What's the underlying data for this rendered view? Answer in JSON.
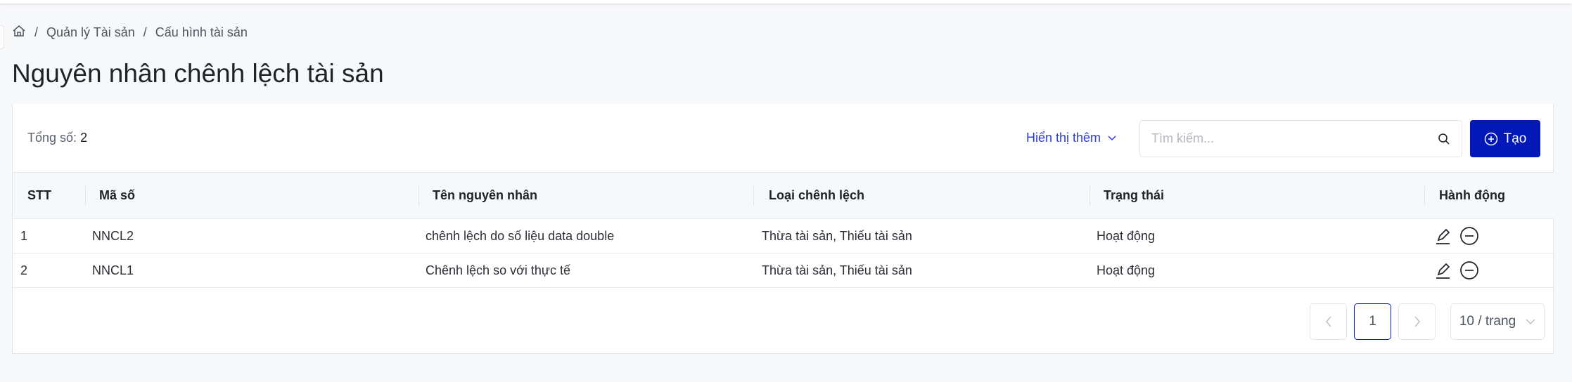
{
  "breadcrumb": {
    "items": [
      "Quản lý Tài sản",
      "Cấu hình tài sản"
    ],
    "separator": "/"
  },
  "page_title": "Nguyên nhân chênh lệch tài sản",
  "toolbar": {
    "total_label": "Tổng số:",
    "total_value": "2",
    "more_label": "Hiển thị thêm",
    "search_placeholder": "Tìm kiếm...",
    "create_label": "Tạo"
  },
  "table": {
    "columns": [
      "STT",
      "Mã số",
      "Tên nguyên nhân",
      "Loại chênh lệch",
      "Trạng thái",
      "Hành động"
    ],
    "rows": [
      {
        "stt": "1",
        "code": "NNCL2",
        "name": "chênh lệch do số liệu data double",
        "type": "Thừa tài sản, Thiếu tài sản",
        "status": "Hoạt động"
      },
      {
        "stt": "2",
        "code": "NNCL1",
        "name": "Chênh lệch so với thực tế",
        "type": "Thừa tài sản, Thiếu tài sản",
        "status": "Hoạt động"
      }
    ]
  },
  "pagination": {
    "current_page": "1",
    "page_size": "10 / trang"
  },
  "colors": {
    "primary": "#0318b7",
    "link": "#2b3ae0",
    "background": "#f7f8fa"
  }
}
